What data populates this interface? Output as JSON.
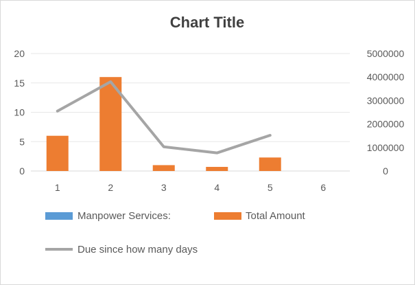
{
  "chart_data": {
    "type": "bar",
    "title": "Chart Title",
    "categories": [
      "1",
      "2",
      "3",
      "4",
      "5",
      "6"
    ],
    "y_left": {
      "min": 0,
      "max": 20,
      "ticks": [
        0,
        5,
        10,
        15,
        20
      ],
      "tick_labels": [
        "0",
        "5",
        "10",
        "15",
        "20"
      ]
    },
    "y_right": {
      "min": 0,
      "max": 5000000,
      "ticks": [
        0,
        1000000,
        2000000,
        3000000,
        4000000,
        5000000
      ],
      "tick_labels": [
        "0",
        "1000000",
        "2000000",
        "3000000",
        "4000000",
        "5000000"
      ]
    },
    "grid": true,
    "legend_position": "bottom",
    "series": [
      {
        "name": "Manpower Services:",
        "kind": "bar",
        "axis": "left",
        "color": "#5b9bd5",
        "values": [
          null,
          null,
          null,
          null,
          null,
          null
        ]
      },
      {
        "name": "Total Amount",
        "kind": "bar",
        "axis": "left",
        "color": "#ed7d31",
        "values": [
          6,
          16,
          1,
          0.7,
          2.3,
          null
        ]
      },
      {
        "name": "Due since how many days",
        "kind": "line",
        "axis": "right",
        "color": "#a5a5a5",
        "values": [
          2550000,
          3800000,
          1030000,
          770000,
          1520000,
          null
        ]
      }
    ]
  }
}
